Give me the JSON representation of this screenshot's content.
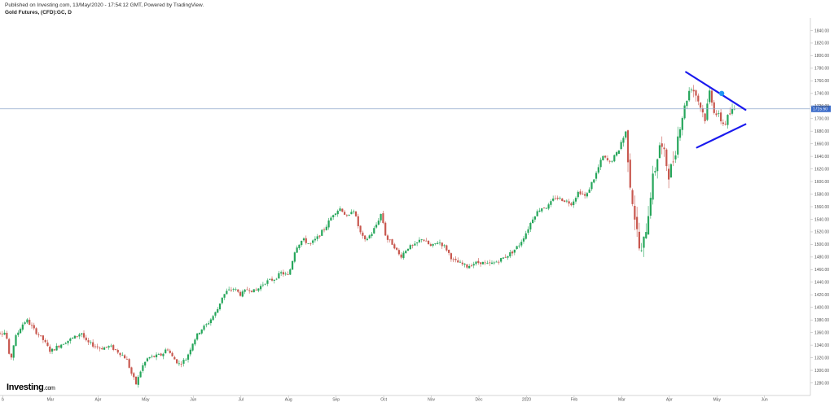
{
  "header": {
    "published": "Published on Investing.com, 13/May/2020 - 17:54:12 GMT, Powered by TradingView.",
    "symbol": "Gold Futures, (CFD):GC, D"
  },
  "brand": {
    "logo_main": "Investing",
    "logo_domain": ".com"
  },
  "colors": {
    "up": "#26a65b",
    "down": "#c8584f",
    "trendline": "#1a1aee",
    "price_line": "#8fa8cc",
    "price_label_bg": "#3a6bc9",
    "marker": "#2196f3"
  },
  "chart_data": {
    "type": "candlestick",
    "title": "Gold Futures, (CFD):GC, D",
    "ylim": [
      1260,
      1860
    ],
    "y_ticks": [
      "1280.00",
      "1300.00",
      "1320.00",
      "1340.00",
      "1360.00",
      "1380.00",
      "1400.00",
      "1420.00",
      "1440.00",
      "1460.00",
      "1480.00",
      "1500.00",
      "1520.00",
      "1540.00",
      "1560.00",
      "1580.00",
      "1600.00",
      "1620.00",
      "1640.00",
      "1660.00",
      "1680.00",
      "1700.00",
      "1720.00",
      "1740.00",
      "1760.00",
      "1780.00",
      "1800.00",
      "1820.00",
      "1840.00"
    ],
    "x_ticks": [
      {
        "label": "b",
        "month": 0
      },
      {
        "label": "Mar",
        "month": 1
      },
      {
        "label": "Apr",
        "month": 2
      },
      {
        "label": "May",
        "month": 3
      },
      {
        "label": "Jun",
        "month": 4
      },
      {
        "label": "Jul",
        "month": 5
      },
      {
        "label": "Aug",
        "month": 6
      },
      {
        "label": "Sep",
        "month": 7
      },
      {
        "label": "Oct",
        "month": 8
      },
      {
        "label": "Nov",
        "month": 9
      },
      {
        "label": "Dec",
        "month": 10
      },
      {
        "label": "2020",
        "month": 11
      },
      {
        "label": "Feb",
        "month": 12
      },
      {
        "label": "Mar",
        "month": 13
      },
      {
        "label": "Apr",
        "month": 14
      },
      {
        "label": "May",
        "month": 15
      },
      {
        "label": "Jun",
        "month": 16
      }
    ],
    "last_price": 1715.5,
    "last_price_label": "1715.50",
    "trendlines": [
      {
        "from": {
          "month": 14.35,
          "y": 1774
        },
        "to": {
          "month": 15.6,
          "y": 1714
        }
      },
      {
        "from": {
          "month": 14.58,
          "y": 1654
        },
        "to": {
          "month": 15.6,
          "y": 1691
        }
      }
    ],
    "marker": {
      "month": 15.1,
      "y": 1740
    },
    "price_path": [
      [
        -0.25,
        1362
      ],
      [
        0.05,
        1360
      ],
      [
        0.1,
        1345
      ],
      [
        0.15,
        1310
      ],
      [
        0.25,
        1350
      ],
      [
        0.4,
        1372
      ],
      [
        0.5,
        1380
      ],
      [
        0.65,
        1365
      ],
      [
        0.85,
        1348
      ],
      [
        1.0,
        1330
      ],
      [
        1.15,
        1338
      ],
      [
        1.3,
        1345
      ],
      [
        1.5,
        1352
      ],
      [
        1.65,
        1360
      ],
      [
        1.75,
        1345
      ],
      [
        1.9,
        1340
      ],
      [
        2.05,
        1335
      ],
      [
        2.25,
        1338
      ],
      [
        2.45,
        1328
      ],
      [
        2.6,
        1318
      ],
      [
        2.7,
        1295
      ],
      [
        2.8,
        1278
      ],
      [
        2.92,
        1305
      ],
      [
        3.05,
        1320
      ],
      [
        3.2,
        1322
      ],
      [
        3.35,
        1325
      ],
      [
        3.45,
        1336
      ],
      [
        3.55,
        1322
      ],
      [
        3.7,
        1310
      ],
      [
        3.85,
        1318
      ],
      [
        4.0,
        1346
      ],
      [
        4.15,
        1364
      ],
      [
        4.3,
        1374
      ],
      [
        4.5,
        1395
      ],
      [
        4.6,
        1416
      ],
      [
        4.7,
        1425
      ],
      [
        4.85,
        1430
      ],
      [
        5.0,
        1420
      ],
      [
        5.15,
        1430
      ],
      [
        5.3,
        1425
      ],
      [
        5.5,
        1440
      ],
      [
        5.7,
        1445
      ],
      [
        5.85,
        1455
      ],
      [
        6.0,
        1450
      ],
      [
        6.15,
        1495
      ],
      [
        6.3,
        1508
      ],
      [
        6.45,
        1500
      ],
      [
        6.6,
        1510
      ],
      [
        6.8,
        1530
      ],
      [
        6.95,
        1550
      ],
      [
        7.1,
        1558
      ],
      [
        7.25,
        1540
      ],
      [
        7.35,
        1560
      ],
      [
        7.5,
        1520
      ],
      [
        7.6,
        1505
      ],
      [
        7.75,
        1518
      ],
      [
        7.85,
        1532
      ],
      [
        7.95,
        1550
      ],
      [
        8.05,
        1510
      ],
      [
        8.2,
        1500
      ],
      [
        8.35,
        1480
      ],
      [
        8.5,
        1495
      ],
      [
        8.65,
        1498
      ],
      [
        8.8,
        1510
      ],
      [
        9.0,
        1496
      ],
      [
        9.15,
        1505
      ],
      [
        9.3,
        1495
      ],
      [
        9.45,
        1475
      ],
      [
        9.6,
        1470
      ],
      [
        9.75,
        1465
      ],
      [
        9.9,
        1470
      ],
      [
        10.05,
        1472
      ],
      [
        10.15,
        1468
      ],
      [
        10.3,
        1470
      ],
      [
        10.5,
        1478
      ],
      [
        10.7,
        1488
      ],
      [
        10.85,
        1500
      ],
      [
        11.0,
        1520
      ],
      [
        11.15,
        1545
      ],
      [
        11.3,
        1558
      ],
      [
        11.45,
        1560
      ],
      [
        11.6,
        1575
      ],
      [
        11.8,
        1570
      ],
      [
        11.95,
        1565
      ],
      [
        12.1,
        1585
      ],
      [
        12.25,
        1575
      ],
      [
        12.35,
        1595
      ],
      [
        12.45,
        1610
      ],
      [
        12.6,
        1640
      ],
      [
        12.75,
        1630
      ],
      [
        12.9,
        1645
      ],
      [
        13.0,
        1665
      ],
      [
        13.1,
        1680
      ],
      [
        13.15,
        1615
      ],
      [
        13.2,
        1585
      ],
      [
        13.3,
        1530
      ],
      [
        13.4,
        1478
      ],
      [
        13.45,
        1498
      ],
      [
        13.55,
        1545
      ],
      [
        13.62,
        1590
      ],
      [
        13.7,
        1620
      ],
      [
        13.8,
        1660
      ],
      [
        13.9,
        1640
      ],
      [
        14.0,
        1610
      ],
      [
        14.1,
        1640
      ],
      [
        14.2,
        1680
      ],
      [
        14.3,
        1712
      ],
      [
        14.38,
        1735
      ],
      [
        14.45,
        1752
      ],
      [
        14.55,
        1740
      ],
      [
        14.65,
        1720
      ],
      [
        14.75,
        1700
      ],
      [
        14.85,
        1745
      ],
      [
        14.95,
        1710
      ],
      [
        15.05,
        1702
      ],
      [
        15.15,
        1690
      ],
      [
        15.25,
        1705
      ],
      [
        15.32,
        1712
      ],
      [
        15.38,
        1716
      ]
    ]
  }
}
